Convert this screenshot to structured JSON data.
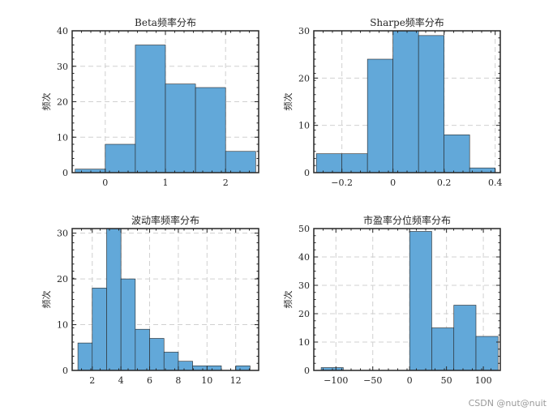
{
  "chart_data": [
    {
      "type": "bar",
      "title": "Beta频率分布",
      "ylabel": "频次",
      "xlim": [
        -0.55,
        2.55
      ],
      "ylim": [
        0,
        40
      ],
      "xticks": [
        0,
        1,
        2
      ],
      "xtick_labels": [
        "0",
        "1",
        "2"
      ],
      "yticks": [
        0,
        10,
        20,
        30,
        40
      ],
      "ytick_labels": [
        "0",
        "10",
        "20",
        "30",
        "40"
      ],
      "grid": true,
      "bins": [
        {
          "x0": -0.5,
          "x1": 0.0,
          "count": 1
        },
        {
          "x0": 0.0,
          "x1": 0.5,
          "count": 8
        },
        {
          "x0": 0.5,
          "x1": 1.0,
          "count": 36
        },
        {
          "x0": 1.0,
          "x1": 1.5,
          "count": 25
        },
        {
          "x0": 1.5,
          "x1": 2.0,
          "count": 24
        },
        {
          "x0": 2.0,
          "x1": 2.5,
          "count": 6
        }
      ]
    },
    {
      "type": "bar",
      "title": "Sharpe频率分布",
      "ylabel": "频次",
      "xlim": [
        -0.31,
        0.42
      ],
      "ylim": [
        0,
        30
      ],
      "xticks": [
        -0.2,
        0,
        0.2,
        0.4
      ],
      "xtick_labels": [
        "−0.2",
        "0",
        "0.2",
        "0.4"
      ],
      "yticks": [
        0,
        10,
        20,
        30
      ],
      "ytick_labels": [
        "0",
        "10",
        "20",
        "30"
      ],
      "grid": true,
      "bins": [
        {
          "x0": -0.3,
          "x1": -0.2,
          "count": 4
        },
        {
          "x0": -0.2,
          "x1": -0.1,
          "count": 4
        },
        {
          "x0": -0.1,
          "x1": 0.0,
          "count": 24
        },
        {
          "x0": 0.0,
          "x1": 0.1,
          "count": 30
        },
        {
          "x0": 0.1,
          "x1": 0.2,
          "count": 29
        },
        {
          "x0": 0.2,
          "x1": 0.3,
          "count": 8
        },
        {
          "x0": 0.3,
          "x1": 0.4,
          "count": 1
        }
      ]
    },
    {
      "type": "bar",
      "title": "波动率频率分布",
      "ylabel": "频次",
      "xlim": [
        0.6,
        13.6
      ],
      "ylim": [
        0,
        31
      ],
      "xticks": [
        2,
        4,
        6,
        8,
        10,
        12
      ],
      "xtick_labels": [
        "2",
        "4",
        "6",
        "8",
        "10",
        "12"
      ],
      "yticks": [
        0,
        10,
        20,
        30
      ],
      "ytick_labels": [
        "0",
        "10",
        "20",
        "30"
      ],
      "grid": true,
      "bins": [
        {
          "x0": 1.0,
          "x1": 2.0,
          "count": 6
        },
        {
          "x0": 2.0,
          "x1": 3.0,
          "count": 18
        },
        {
          "x0": 3.0,
          "x1": 4.0,
          "count": 31
        },
        {
          "x0": 4.0,
          "x1": 5.0,
          "count": 20
        },
        {
          "x0": 5.0,
          "x1": 6.0,
          "count": 9
        },
        {
          "x0": 6.0,
          "x1": 7.0,
          "count": 7
        },
        {
          "x0": 7.0,
          "x1": 8.0,
          "count": 4
        },
        {
          "x0": 8.0,
          "x1": 9.0,
          "count": 2
        },
        {
          "x0": 9.0,
          "x1": 10.0,
          "count": 1
        },
        {
          "x0": 10.0,
          "x1": 11.0,
          "count": 1
        },
        {
          "x0": 11.0,
          "x1": 12.0,
          "count": 0
        },
        {
          "x0": 12.0,
          "x1": 13.0,
          "count": 1
        }
      ]
    },
    {
      "type": "bar",
      "title": "市盈率分位频率分布",
      "ylabel": "频次",
      "xlim": [
        -130,
        123
      ],
      "ylim": [
        0,
        50
      ],
      "xticks": [
        -100,
        -50,
        0,
        50,
        100
      ],
      "xtick_labels": [
        "−100",
        "−50",
        "0",
        "50",
        "100"
      ],
      "yticks": [
        0,
        10,
        20,
        30,
        40,
        50
      ],
      "ytick_labels": [
        "0",
        "10",
        "20",
        "30",
        "40",
        "50"
      ],
      "grid": true,
      "bins": [
        {
          "x0": -120,
          "x1": -90,
          "count": 1
        },
        {
          "x0": 0,
          "x1": 30,
          "count": 49
        },
        {
          "x0": 30,
          "x1": 60,
          "count": 15
        },
        {
          "x0": 60,
          "x1": 90,
          "count": 23
        },
        {
          "x0": 90,
          "x1": 120,
          "count": 12
        }
      ]
    }
  ],
  "colors": {
    "bar_fill": "#62a8d9",
    "bar_edge": "#262626",
    "grid": "#d0d0d0"
  },
  "watermark": "CSDN @nut@nuit"
}
